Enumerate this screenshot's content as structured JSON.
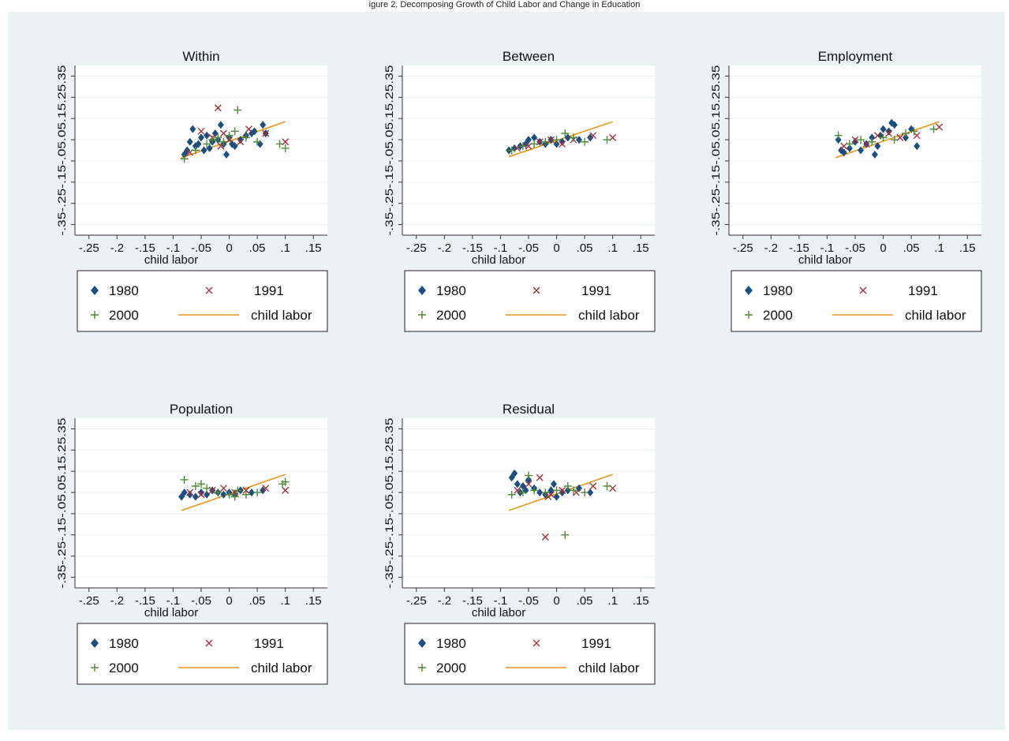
{
  "header_text": "igure 2. Decomposing Growth of Child Labor and Change in Education",
  "legend_entries": [
    "1980",
    "1991",
    "2000",
    "child labor"
  ],
  "colors": {
    "background": "#eaf2f3",
    "plot_bg": "#ffffff",
    "c1980": "#1c4e80",
    "c1991": "#a3303a",
    "c2000": "#4e8a3a",
    "fit": "#e8941a",
    "grid": "#e8eef0"
  },
  "chart_data": [
    {
      "type": "scatter",
      "title": "Within",
      "xlabel": "child labor",
      "ylabel": "",
      "xlim": [
        -0.275,
        0.175
      ],
      "ylim": [
        -0.4,
        0.4
      ],
      "xticks": [
        "-.25",
        "-.2",
        "-.15",
        "-.1",
        "-.05",
        "0",
        ".05",
        ".1",
        ".15"
      ],
      "xtick_values": [
        -0.25,
        -0.2,
        -0.15,
        -0.1,
        -0.05,
        0,
        0.05,
        0.1,
        0.15
      ],
      "yticks": [
        "-.35",
        "-.25",
        "-.15",
        "-.05",
        ".05",
        ".15",
        ".25",
        ".35"
      ],
      "ytick_values": [
        -0.35,
        -0.25,
        -0.15,
        -0.05,
        0.05,
        0.15,
        0.25,
        0.35
      ],
      "legend": "bottom",
      "fit_line": {
        "x": [
          -0.085,
          0.1
        ],
        "y": [
          -0.035,
          0.135
        ]
      },
      "series": [
        {
          "name": "1980",
          "marker": "diamond",
          "x": [
            -0.08,
            -0.075,
            -0.07,
            -0.065,
            -0.06,
            -0.055,
            -0.05,
            -0.045,
            -0.04,
            -0.035,
            -0.03,
            -0.025,
            -0.02,
            -0.015,
            -0.01,
            -0.005,
            0,
            0.005,
            0.01,
            0.02,
            0.03,
            0.04,
            0.045,
            0.055,
            0.06,
            0.065
          ],
          "y": [
            -0.02,
            0,
            0.04,
            0.1,
            0.02,
            0.03,
            0.06,
            0,
            0.07,
            0.01,
            0.04,
            0.08,
            0.05,
            0.12,
            0.03,
            -0.02,
            0.06,
            0.03,
            0.02,
            0.05,
            0.07,
            0.08,
            0.09,
            0.03,
            0.12,
            0.08
          ]
        },
        {
          "name": "1991",
          "marker": "x",
          "x": [
            -0.07,
            -0.05,
            -0.03,
            -0.02,
            -0.015,
            -0.01,
            0,
            0.02,
            0.035,
            0.065,
            0.1
          ],
          "y": [
            -0.01,
            0.09,
            0.06,
            0.2,
            0.02,
            0.08,
            0.05,
            0.04,
            0.1,
            0.08,
            0.04
          ]
        },
        {
          "name": "2000",
          "marker": "plus",
          "x": [
            -0.08,
            -0.06,
            -0.04,
            -0.03,
            -0.02,
            -0.01,
            0,
            0.01,
            0.015,
            0.03,
            0.05,
            0.09,
            0.1
          ],
          "y": [
            -0.04,
            0,
            0.03,
            0.05,
            0.06,
            0.04,
            0.07,
            0.09,
            0.19,
            0.06,
            0.04,
            0.03,
            0.01
          ]
        }
      ]
    },
    {
      "type": "scatter",
      "title": "Between",
      "xlabel": "child labor",
      "ylabel": "",
      "xlim": [
        -0.275,
        0.175
      ],
      "ylim": [
        -0.4,
        0.4
      ],
      "xticks": [
        "-.25",
        "-.2",
        "-.15",
        "-.1",
        "-.05",
        "0",
        ".05",
        ".1",
        ".15"
      ],
      "xtick_values": [
        -0.25,
        -0.2,
        -0.15,
        -0.1,
        -0.05,
        0,
        0.05,
        0.1,
        0.15
      ],
      "yticks": [
        "-.35",
        "-.25",
        "-.15",
        "-.05",
        ".05",
        ".15",
        ".25",
        ".35"
      ],
      "ytick_values": [
        -0.35,
        -0.25,
        -0.15,
        -0.05,
        0.05,
        0.15,
        0.25,
        0.35
      ],
      "legend": "bottom",
      "fit_line": {
        "x": [
          -0.085,
          0.1
        ],
        "y": [
          -0.03,
          0.135
        ]
      },
      "series": [
        {
          "name": "1980",
          "marker": "diamond",
          "x": [
            -0.085,
            -0.075,
            -0.065,
            -0.055,
            -0.05,
            -0.04,
            -0.03,
            -0.02,
            -0.01,
            0,
            0.01,
            0.02,
            0.04,
            0.06
          ],
          "y": [
            0,
            0.01,
            0.02,
            0.03,
            0.05,
            0.06,
            0.04,
            0.03,
            0.05,
            0.03,
            0.04,
            0.06,
            0.05,
            0.06
          ]
        },
        {
          "name": "1991",
          "marker": "x",
          "x": [
            -0.07,
            -0.05,
            -0.03,
            -0.01,
            0.01,
            0.03,
            0.065,
            0.1
          ],
          "y": [
            0.01,
            0.02,
            0.04,
            0.05,
            0.03,
            0.05,
            0.07,
            0.06
          ]
        },
        {
          "name": "2000",
          "marker": "plus",
          "x": [
            -0.08,
            -0.06,
            -0.04,
            -0.02,
            0,
            0.015,
            0.03,
            0.05,
            0.09
          ],
          "y": [
            0,
            0.02,
            0.03,
            0.04,
            0.05,
            0.08,
            0.06,
            0.04,
            0.05
          ]
        }
      ]
    },
    {
      "type": "scatter",
      "title": "Employment",
      "xlabel": "child labor",
      "ylabel": "",
      "xlim": [
        -0.275,
        0.175
      ],
      "ylim": [
        -0.4,
        0.4
      ],
      "xticks": [
        "-.25",
        "-.2",
        "-.15",
        "-.1",
        "-.05",
        "0",
        ".05",
        ".1",
        ".15"
      ],
      "xtick_values": [
        -0.25,
        -0.2,
        -0.15,
        -0.1,
        -0.05,
        0,
        0.05,
        0.1,
        0.15
      ],
      "yticks": [
        "-.35",
        "-.25",
        "-.15",
        "-.05",
        ".05",
        ".15",
        ".25",
        ".35"
      ],
      "ytick_values": [
        -0.35,
        -0.25,
        -0.15,
        -0.05,
        0.05,
        0.15,
        0.25,
        0.35
      ],
      "legend": "bottom",
      "fit_line": {
        "x": [
          -0.085,
          0.1
        ],
        "y": [
          -0.035,
          0.135
        ]
      },
      "series": [
        {
          "name": "1980",
          "marker": "diamond",
          "x": [
            -0.08,
            -0.075,
            -0.07,
            -0.06,
            -0.05,
            -0.04,
            -0.03,
            -0.02,
            -0.015,
            -0.01,
            -0.005,
            0,
            0.01,
            0.015,
            0.02,
            0.04,
            0.05,
            0.06
          ],
          "y": [
            0.05,
            0,
            -0.01,
            0.01,
            0.04,
            0,
            0.03,
            0.06,
            -0.02,
            0.02,
            0.07,
            0.1,
            0.09,
            0.13,
            0.12,
            0.06,
            0.1,
            0.02
          ]
        },
        {
          "name": "1991",
          "marker": "x",
          "x": [
            -0.07,
            -0.05,
            -0.03,
            -0.01,
            0.01,
            0.03,
            0.06,
            0.1
          ],
          "y": [
            0.02,
            0.05,
            0.03,
            0.07,
            0.08,
            0.06,
            0.07,
            0.11
          ]
        },
        {
          "name": "2000",
          "marker": "plus",
          "x": [
            -0.08,
            -0.06,
            -0.04,
            -0.02,
            0,
            0.02,
            0.04,
            0.055,
            0.09
          ],
          "y": [
            0.07,
            0.03,
            0.05,
            0.04,
            0.06,
            0.05,
            0.08,
            0.09,
            0.1
          ]
        }
      ]
    },
    {
      "type": "scatter",
      "title": "Population",
      "xlabel": "child labor",
      "ylabel": "",
      "xlim": [
        -0.275,
        0.175
      ],
      "ylim": [
        -0.4,
        0.4
      ],
      "xticks": [
        "-.25",
        "-.2",
        "-.15",
        "-.1",
        "-.05",
        "0",
        ".05",
        ".1",
        ".15"
      ],
      "xtick_values": [
        -0.25,
        -0.2,
        -0.15,
        -0.1,
        -0.05,
        0,
        0.05,
        0.1,
        0.15
      ],
      "yticks": [
        "-.35",
        "-.25",
        "-.15",
        "-.05",
        ".05",
        ".15",
        ".25",
        ".35"
      ],
      "ytick_values": [
        -0.35,
        -0.25,
        -0.15,
        -0.05,
        0.05,
        0.15,
        0.25,
        0.35
      ],
      "legend": "bottom",
      "fit_line": {
        "x": [
          -0.085,
          0.1
        ],
        "y": [
          -0.035,
          0.135
        ]
      },
      "series": [
        {
          "name": "1980",
          "marker": "diamond",
          "x": [
            -0.085,
            -0.08,
            -0.07,
            -0.06,
            -0.05,
            -0.04,
            -0.03,
            -0.02,
            -0.01,
            0,
            0.01,
            0.02,
            0.04,
            0.06
          ],
          "y": [
            0.03,
            0.05,
            0.04,
            0.03,
            0.05,
            0.04,
            0.06,
            0.05,
            0.04,
            0.05,
            0.04,
            0.06,
            0.05,
            0.06
          ]
        },
        {
          "name": "1991",
          "marker": "x",
          "x": [
            -0.07,
            -0.05,
            -0.03,
            -0.01,
            0.01,
            0.03,
            0.065,
            0.1
          ],
          "y": [
            0.05,
            0.04,
            0.06,
            0.07,
            0.05,
            0.06,
            0.07,
            0.06
          ]
        },
        {
          "name": "2000",
          "marker": "plus",
          "x": [
            -0.08,
            -0.06,
            -0.05,
            -0.04,
            -0.02,
            0,
            0.01,
            0.015,
            0.03,
            0.05,
            0.095,
            0.1
          ],
          "y": [
            0.11,
            0.08,
            0.09,
            0.07,
            0.05,
            0.04,
            0.03,
            0.06,
            0.04,
            0.05,
            0.09,
            0.1
          ]
        }
      ]
    },
    {
      "type": "scatter",
      "title": "Residual",
      "xlabel": "child labor",
      "ylabel": "",
      "xlim": [
        -0.275,
        0.175
      ],
      "ylim": [
        -0.4,
        0.4
      ],
      "xticks": [
        "-.25",
        "-.2",
        "-.15",
        "-.1",
        "-.05",
        "0",
        ".05",
        ".1",
        ".15"
      ],
      "xtick_values": [
        -0.25,
        -0.2,
        -0.15,
        -0.1,
        -0.05,
        0,
        0.05,
        0.1,
        0.15
      ],
      "yticks": [
        "-.35",
        "-.25",
        "-.15",
        "-.05",
        ".05",
        ".15",
        ".25",
        ".35"
      ],
      "ytick_values": [
        -0.35,
        -0.25,
        -0.15,
        -0.05,
        0.05,
        0.15,
        0.25,
        0.35
      ],
      "legend": "bottom",
      "fit_line": {
        "x": [
          -0.085,
          0.1
        ],
        "y": [
          -0.035,
          0.135
        ]
      },
      "series": [
        {
          "name": "1980",
          "marker": "diamond",
          "x": [
            -0.08,
            -0.075,
            -0.07,
            -0.065,
            -0.06,
            -0.055,
            -0.05,
            -0.04,
            -0.03,
            -0.02,
            -0.01,
            -0.005,
            0,
            0.01,
            0.02,
            0.04,
            0.06
          ],
          "y": [
            0.12,
            0.14,
            0.09,
            0.05,
            0.08,
            0.06,
            0.11,
            0.07,
            0.05,
            0.04,
            0.06,
            0.09,
            0.03,
            0.05,
            0.06,
            0.07,
            0.05
          ]
        },
        {
          "name": "1991",
          "marker": "x",
          "x": [
            -0.07,
            -0.05,
            -0.03,
            -0.02,
            -0.015,
            -0.01,
            0.01,
            0.035,
            0.065,
            0.1
          ],
          "y": [
            0.06,
            0.09,
            0.12,
            -0.16,
            0.03,
            0.04,
            0.06,
            0.05,
            0.08,
            0.07
          ]
        },
        {
          "name": "2000",
          "marker": "plus",
          "x": [
            -0.08,
            -0.06,
            -0.05,
            -0.04,
            -0.02,
            0,
            0.015,
            0.02,
            0.03,
            0.05,
            0.09
          ],
          "y": [
            0.04,
            0.05,
            0.13,
            0.06,
            0.05,
            0.06,
            -0.15,
            0.08,
            0.06,
            0.05,
            0.08
          ]
        }
      ]
    }
  ]
}
